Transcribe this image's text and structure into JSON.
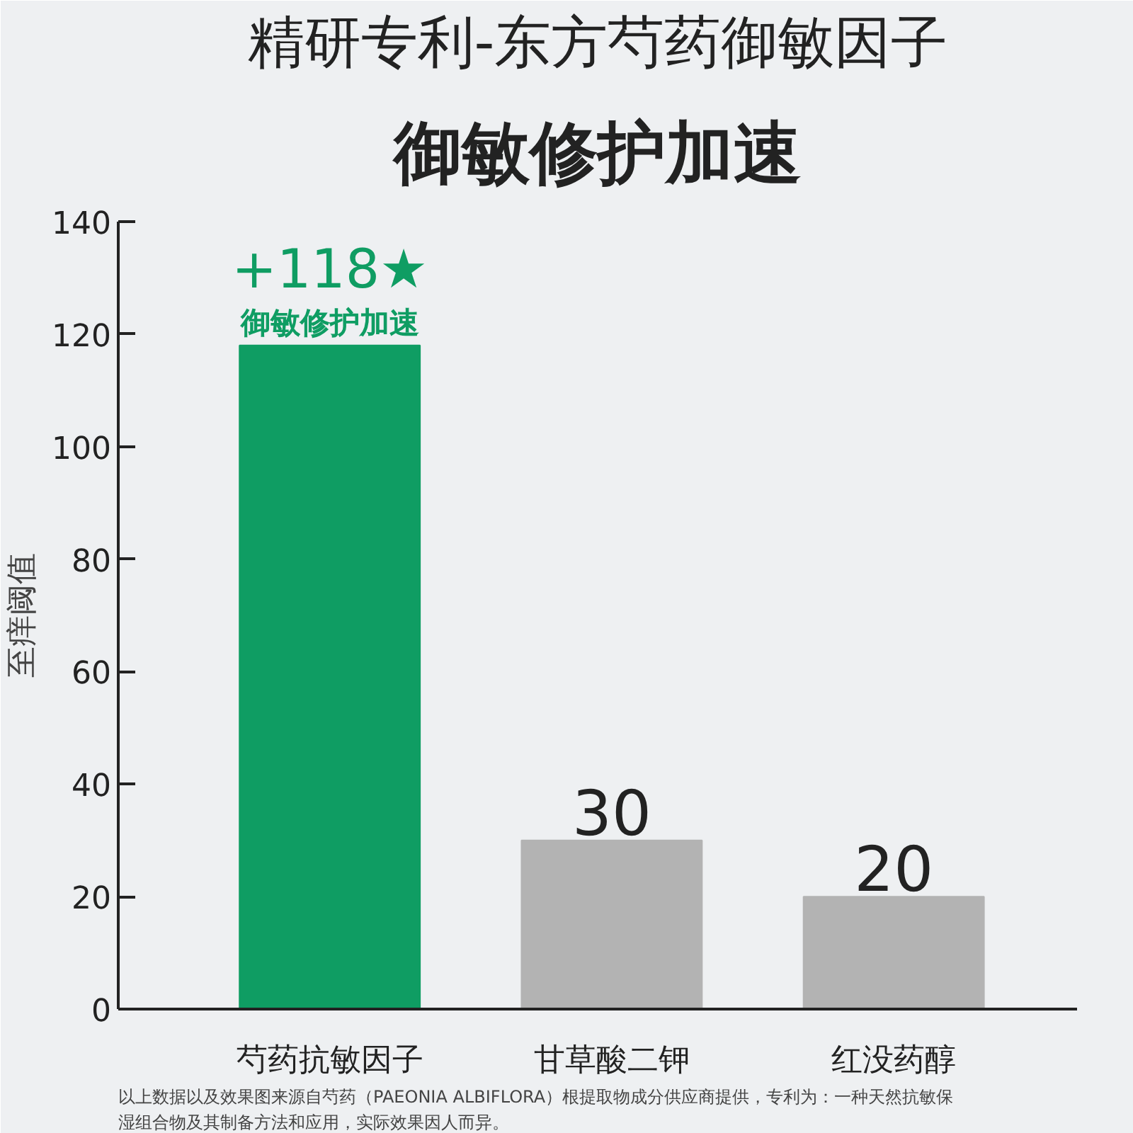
{
  "chart_data": {
    "type": "bar",
    "title": "精研专利-东方芍药御敏因子",
    "subtitle": "御敏修护加速",
    "ylabel": "至痒阈值",
    "categories": [
      "芍药抗敏因子",
      "甘草酸二钾",
      "红没药醇"
    ],
    "values": [
      118,
      30,
      20
    ],
    "colors": [
      "#0f9d63",
      "#b3b3b3",
      "#b3b3b3"
    ],
    "value_labels": [
      "+118★",
      "30",
      "20"
    ],
    "ylim": [
      0,
      140
    ],
    "yticks": [
      0,
      20,
      40,
      60,
      80,
      100,
      120,
      140
    ],
    "grid": false,
    "annotations": [
      {
        "text": "御敏修护加速",
        "x": "芍药抗敏因子",
        "y": 118
      },
      "以上数据以及效果图来源自芍药（PAEONIA ALBIFLORA）根提取物成分供应商提供，专利为：一种天然抗敏保湿组合物及其制备方法和应用，实际效果因人而异。"
    ]
  }
}
